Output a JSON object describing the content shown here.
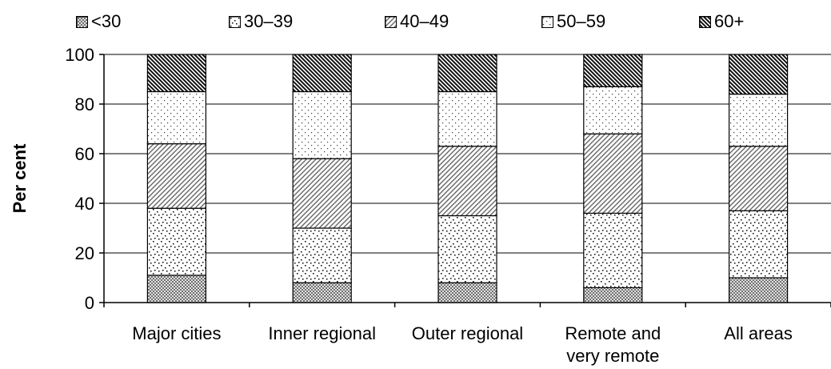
{
  "chart_data": {
    "type": "bar",
    "stacked": true,
    "categories": [
      "Major cities",
      "Inner regional",
      "Outer regional",
      "Remote and very remote",
      "All areas"
    ],
    "category_lines": [
      [
        "Major cities"
      ],
      [
        "Inner regional"
      ],
      [
        "Outer regional"
      ],
      [
        "Remote and",
        "very remote"
      ],
      [
        "All areas"
      ]
    ],
    "series": [
      {
        "name": "<30",
        "pattern": "crosshatch",
        "values": [
          11,
          8,
          8,
          6,
          10
        ]
      },
      {
        "name": "30–39",
        "pattern": "dots-sparse",
        "values": [
          27,
          22,
          27,
          30,
          27
        ]
      },
      {
        "name": "40–49",
        "pattern": "diagonal",
        "values": [
          26,
          28,
          28,
          32,
          26
        ]
      },
      {
        "name": "50–59",
        "pattern": "dots-fine",
        "values": [
          21,
          27,
          22,
          19,
          21
        ]
      },
      {
        "name": "60+",
        "pattern": "diagonal-dense",
        "values": [
          15,
          15,
          15,
          13,
          16
        ]
      }
    ],
    "title": "",
    "xlabel": "",
    "ylabel": "Per cent",
    "ylim": [
      0,
      100
    ],
    "yticks": [
      0,
      20,
      40,
      60,
      80,
      100
    ],
    "grid": true,
    "legend_position": "top"
  }
}
